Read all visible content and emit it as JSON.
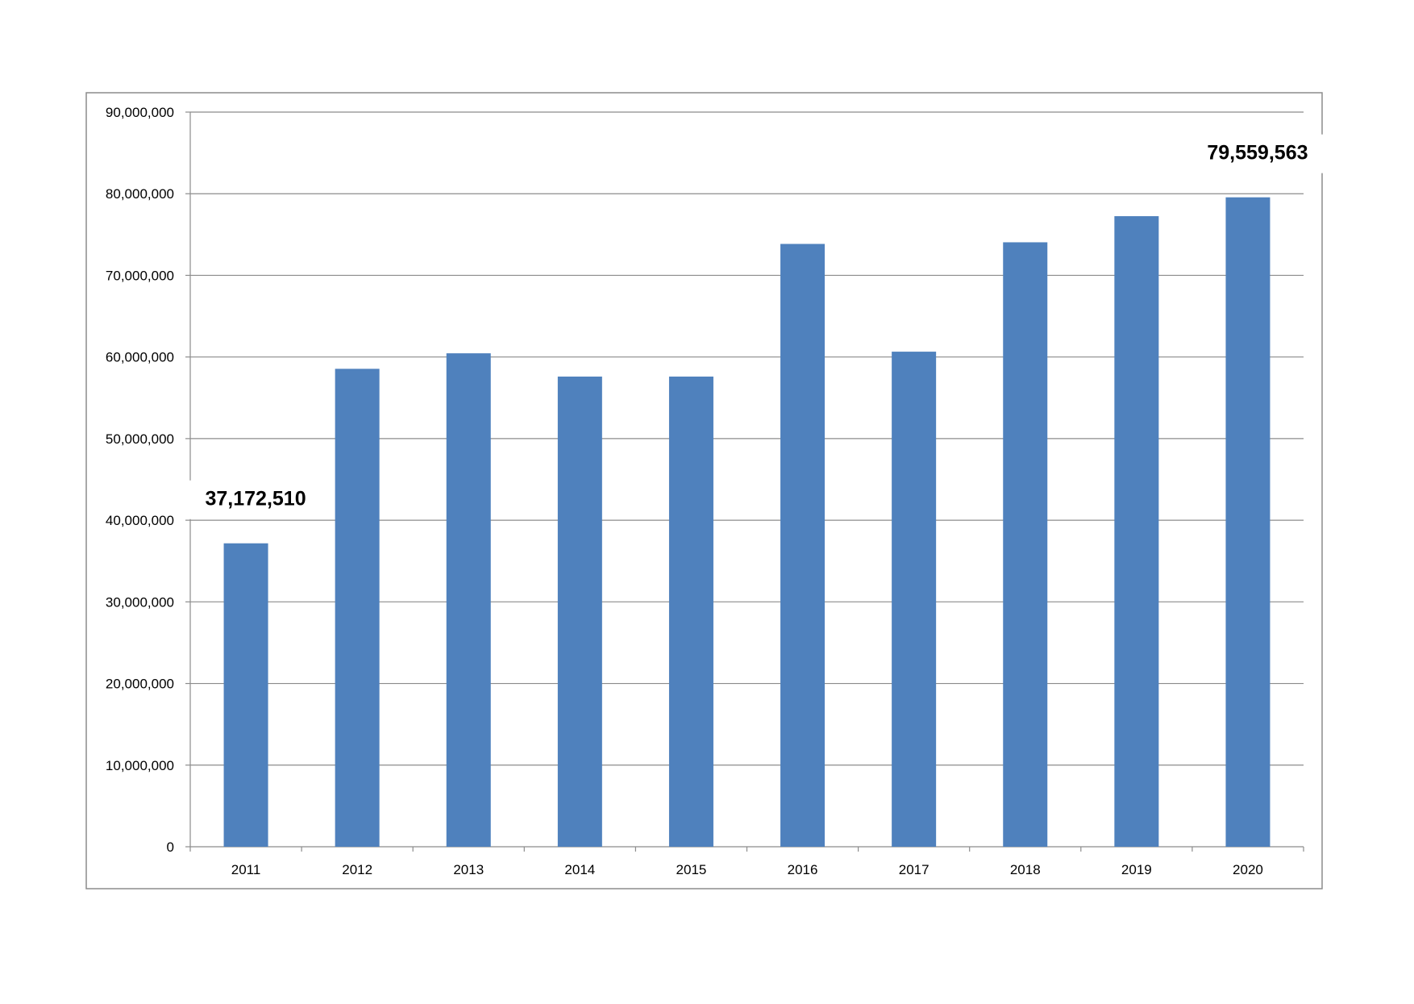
{
  "chart_data": {
    "type": "bar",
    "categories": [
      "2011",
      "2012",
      "2013",
      "2014",
      "2015",
      "2016",
      "2017",
      "2018",
      "2019",
      "2020"
    ],
    "values": [
      37172510,
      58550000,
      60450000,
      57600000,
      57600000,
      73850000,
      60650000,
      74050000,
      77250000,
      79559563
    ],
    "title": "",
    "xlabel": "",
    "ylabel": "",
    "ylim": [
      0,
      90000000
    ],
    "yticks": [
      0,
      10000000,
      20000000,
      30000000,
      40000000,
      50000000,
      60000000,
      70000000,
      80000000,
      90000000
    ],
    "ytick_labels": [
      "0",
      "10,000,000",
      "20,000,000",
      "30,000,000",
      "40,000,000",
      "50,000,000",
      "60,000,000",
      "70,000,000",
      "80,000,000",
      "90,000,000"
    ],
    "grid": true,
    "legend": false,
    "data_labels": [
      {
        "category": "2011",
        "text": "37,172,510"
      },
      {
        "category": "2020",
        "text": "79,559,563"
      }
    ],
    "colors": {
      "bar": "#4F81BD",
      "grid": "#8C8C8C",
      "axis": "#8C8C8C",
      "frame": "#8C8C8C"
    }
  }
}
